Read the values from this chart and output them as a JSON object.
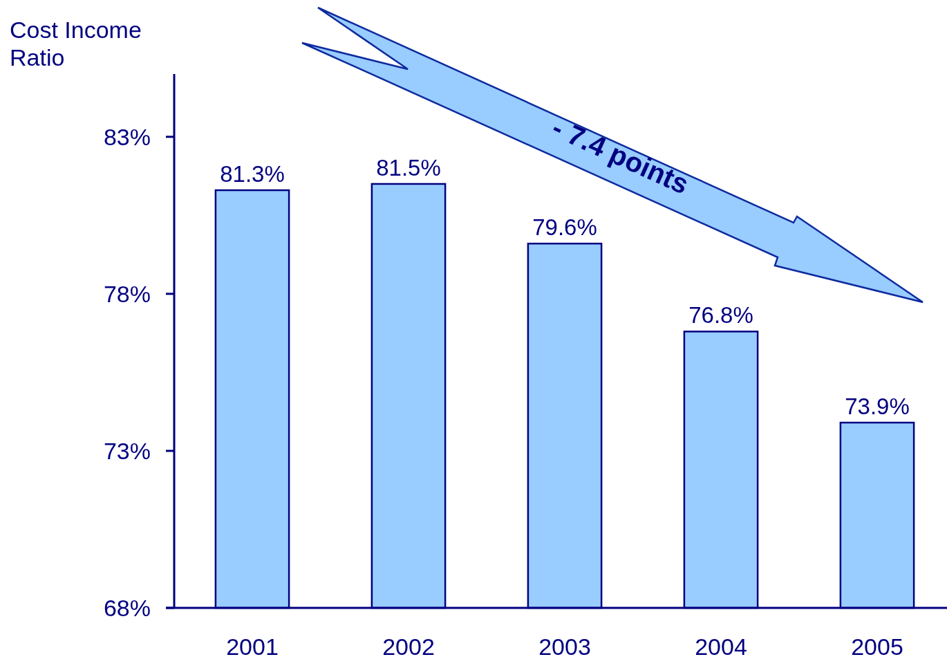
{
  "chart_data": {
    "type": "bar",
    "ylabel": "Cost Income Ratio",
    "categories": [
      "2001",
      "2002",
      "2003",
      "2004",
      "2005"
    ],
    "values": [
      81.3,
      81.5,
      79.6,
      76.8,
      73.9
    ],
    "color": "#99ccff",
    "value_labels": [
      "81.3%",
      "81.5%",
      "79.6%",
      "76.8%",
      "73.9%"
    ],
    "ylim": [
      68,
      85
    ],
    "yticks": [
      {
        "value": 68,
        "label": "68%"
      },
      {
        "value": 73,
        "label": "73%"
      },
      {
        "value": 78,
        "label": "78%"
      },
      {
        "value": 83,
        "label": "83%"
      }
    ],
    "grid": false,
    "annotations": [
      "- 7.4 points"
    ]
  }
}
